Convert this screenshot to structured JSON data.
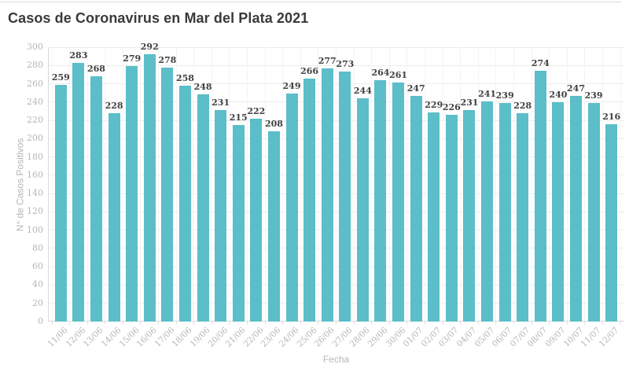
{
  "page": {
    "background": "#ffffff",
    "top_border_color": "#dcdcdc"
  },
  "chart_data": {
    "type": "bar",
    "title": "Casos de Coronavirus en Mar del Plata 2021",
    "xlabel": "Fecha",
    "ylabel": "N° de Casos Positivos",
    "categories": [
      "11/06",
      "12/06",
      "13/06",
      "14/06",
      "15/06",
      "16/06",
      "17/06",
      "18/06",
      "19/06",
      "20/06",
      "21/06",
      "22/06",
      "23/06",
      "24/06",
      "25/06",
      "26/06",
      "27/06",
      "28/06",
      "29/06",
      "30/06",
      "01/07",
      "02/07",
      "03/07",
      "04/07",
      "05/07",
      "06/07",
      "07/07",
      "08/07",
      "09/07",
      "10/07",
      "11/07",
      "12/07"
    ],
    "values": [
      259,
      283,
      268,
      228,
      279,
      292,
      278,
      258,
      248,
      231,
      215,
      222,
      208,
      249,
      266,
      277,
      273,
      244,
      264,
      261,
      247,
      229,
      226,
      231,
      241,
      239,
      228,
      274,
      240,
      247,
      239,
      216
    ],
    "ylim": [
      0,
      300
    ],
    "ytick_step": 20,
    "grid": true,
    "legend": "none",
    "value_labels_shown": true,
    "colors": {
      "bar": "#5BBEC8",
      "title_text": "#3a3a3a",
      "value_label_text": "#404040",
      "axis_text": "#b6b6b6",
      "grid_horizontal": "#ececec",
      "grid_vertical": "#f4f4f4",
      "axis_line": "#d9d9d9"
    }
  }
}
